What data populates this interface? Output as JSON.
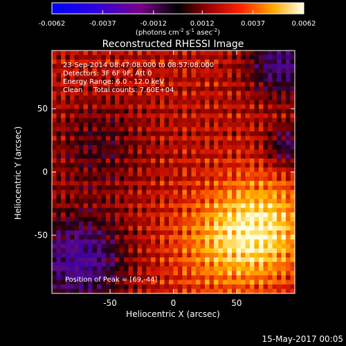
{
  "chart_data": {
    "type": "heatmap",
    "title": "Reconstructed RHESSI Image",
    "xlabel": "Heliocentric X (arcsec)",
    "ylabel": "Heliocentric Y (arcsec)",
    "xlim": [
      -96,
      96
    ],
    "ylim": [
      -96,
      96
    ],
    "x_ticks": [
      -50,
      0,
      50
    ],
    "y_ticks": [
      -50,
      0,
      50
    ],
    "colorbar": {
      "range": [
        -0.0062,
        0.0062
      ],
      "tick_labels": [
        "-0.0062",
        "-0.0037",
        "-0.0012",
        "0.0012",
        "0.0037",
        "0.0062"
      ],
      "unit_prefix": "(photons cm",
      "unit_exp1": "-2",
      "unit_mid": " s",
      "unit_exp2": "-1",
      "unit_mid2": " asec",
      "unit_exp3": "-2",
      "unit_suffix": ")"
    },
    "annotations": {
      "time_range": "23-Sep-2014 08:47:08.000 to 08:57:08.000",
      "detectors": "Detectors: 3F 6F 9F, Att 0",
      "energy_range": "Energy Range: 6.0 - 12.0 keV",
      "clean_counts": "Clean     Total counts: 7.60E+04",
      "peak_position": "Position of Peak = [69,-44]"
    },
    "peak": [
      69,
      -44
    ],
    "footer_date": "15-May-2017 00:05"
  },
  "colors": {
    "background": "#000000",
    "text": "#ffffff"
  }
}
